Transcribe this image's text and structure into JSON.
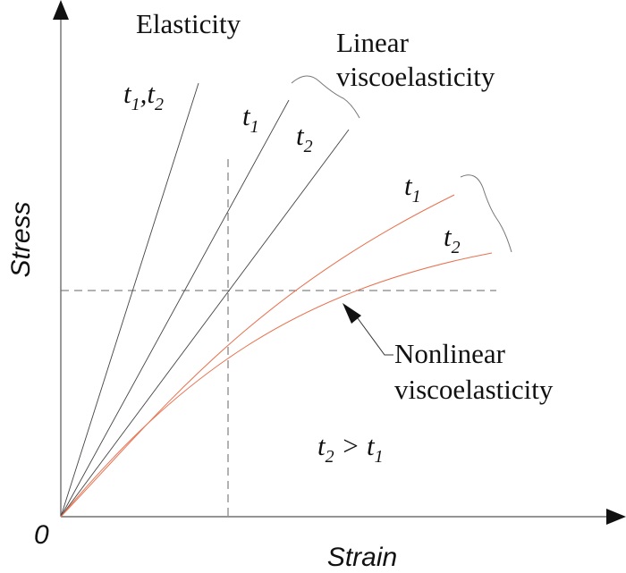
{
  "axes": {
    "x_label": "Strain",
    "y_label": "Stress",
    "origin": "0"
  },
  "labels": {
    "elasticity": "Elasticity",
    "linear": {
      "line1": "Linear",
      "line2": "viscoelasticity"
    },
    "nonlinear": {
      "line1": "Nonlinear",
      "line2": "viscoelasticity"
    }
  },
  "time_labels": {
    "elastic": {
      "a": "t",
      "a_sub": "1",
      "sep": ",",
      "b": "t",
      "b_sub": "2"
    },
    "linear_t1": {
      "base": "t",
      "sub": "1"
    },
    "linear_t2": {
      "base": "t",
      "sub": "2"
    },
    "nonlinear_t1": {
      "base": "t",
      "sub": "1"
    },
    "nonlinear_t2": {
      "base": "t",
      "sub": "2"
    }
  },
  "relation": {
    "left": "t",
    "left_sub": "2",
    "op": " > ",
    "right": "t",
    "right_sub": "1"
  },
  "colors": {
    "nonlinear_curves": "#e8714f",
    "lines": "#444444"
  }
}
